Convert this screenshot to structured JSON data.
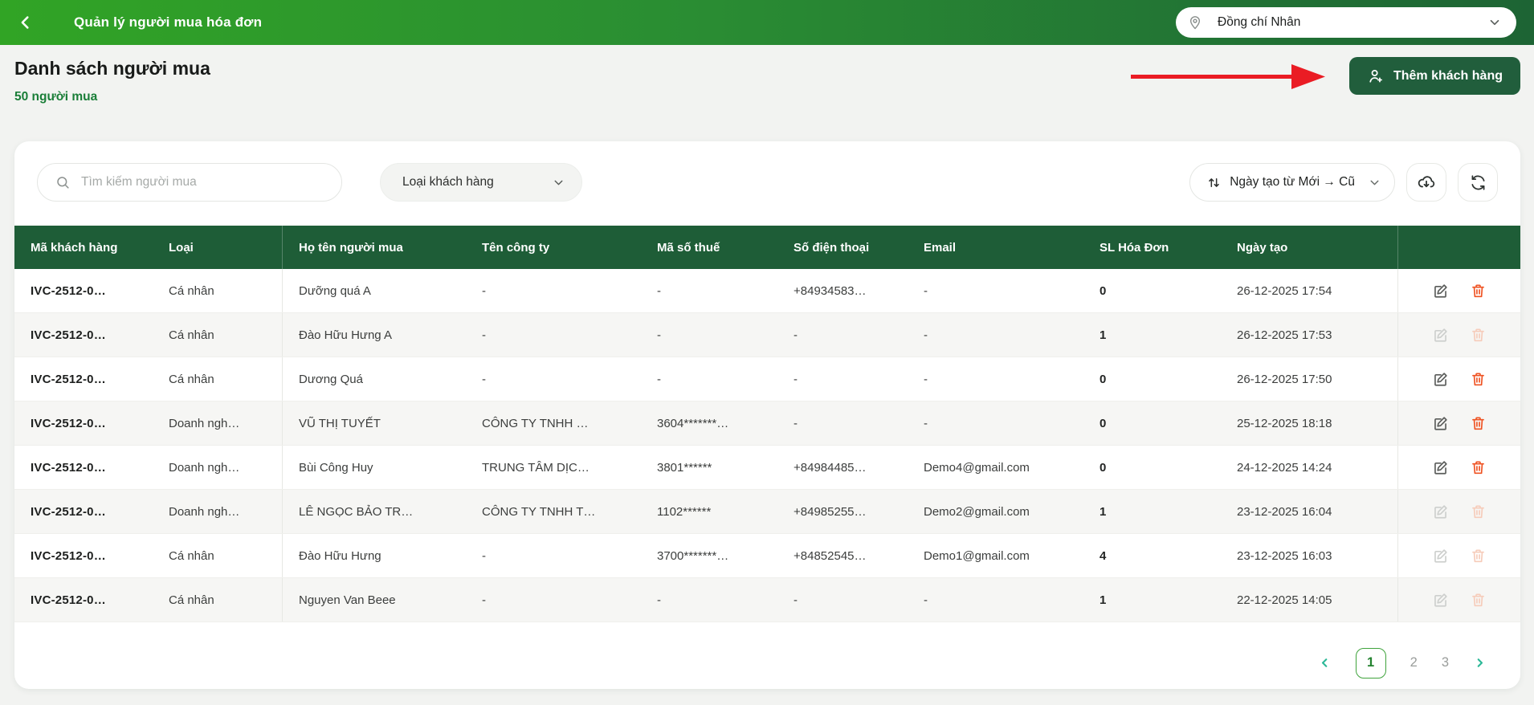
{
  "topbar": {
    "title": "Quản lý người mua hóa đơn",
    "location": {
      "value": "Đồng chí Nhân"
    }
  },
  "page": {
    "title": "Danh sách người mua",
    "count": "50 người mua",
    "add_button_label": "Thêm khách hàng"
  },
  "toolbar": {
    "search_placeholder": "Tìm kiếm người mua",
    "filter_label": "Loại khách hàng",
    "sort_label": "Ngày tạo từ Mới → Cũ"
  },
  "table": {
    "columns": [
      "Mã khách hàng",
      "Loại",
      "Họ tên người mua",
      "Tên công ty",
      "Mã số thuế",
      "Số điện thoại",
      "Email",
      "SL Hóa Đơn",
      "Ngày tạo",
      ""
    ],
    "rows": [
      {
        "code": "IVC-2512-0…",
        "type": "Cá nhân",
        "name": "Dưỡng quá A",
        "company": "-",
        "tax": "-",
        "phone": "+84934583…",
        "email": "-",
        "invoices": "0",
        "created": "26-12-2025 17:54",
        "actions_enabled": true
      },
      {
        "code": "IVC-2512-0…",
        "type": "Cá nhân",
        "name": "Đào Hữu Hưng A",
        "company": "-",
        "tax": "-",
        "phone": "-",
        "email": "-",
        "invoices": "1",
        "created": "26-12-2025 17:53",
        "actions_enabled": false
      },
      {
        "code": "IVC-2512-0…",
        "type": "Cá nhân",
        "name": "Dương Quá",
        "company": "-",
        "tax": "-",
        "phone": "-",
        "email": "-",
        "invoices": "0",
        "created": "26-12-2025 17:50",
        "actions_enabled": true
      },
      {
        "code": "IVC-2512-0…",
        "type": "Doanh ngh…",
        "name": "VŨ THỊ TUYẾT",
        "company": "CÔNG TY TNHH …",
        "tax": "3604*******…",
        "phone": "-",
        "email": "-",
        "invoices": "0",
        "created": "25-12-2025 18:18",
        "actions_enabled": true
      },
      {
        "code": "IVC-2512-0…",
        "type": "Doanh ngh…",
        "name": "Bùi Công Huy",
        "company": "TRUNG TÂM DỊC…",
        "tax": "3801******",
        "phone": "+84984485…",
        "email": "Demo4@gmail.com",
        "invoices": "0",
        "created": "24-12-2025 14:24",
        "actions_enabled": true
      },
      {
        "code": "IVC-2512-0…",
        "type": "Doanh ngh…",
        "name": "LÊ NGỌC BẢO TR…",
        "company": "CÔNG TY TNHH T…",
        "tax": "1102******",
        "phone": "+84985255…",
        "email": "Demo2@gmail.com",
        "invoices": "1",
        "created": "23-12-2025 16:04",
        "actions_enabled": false
      },
      {
        "code": "IVC-2512-0…",
        "type": "Cá nhân",
        "name": "Đào Hữu Hưng",
        "company": "-",
        "tax": "3700*******…",
        "phone": "+84852545…",
        "email": "Demo1@gmail.com",
        "invoices": "4",
        "created": "23-12-2025 16:03",
        "actions_enabled": false
      },
      {
        "code": "IVC-2512-0…",
        "type": "Cá nhân",
        "name": "Nguyen Van Beee",
        "company": "-",
        "tax": "-",
        "phone": "-",
        "email": "-",
        "invoices": "1",
        "created": "22-12-2025 14:05",
        "actions_enabled": false
      }
    ]
  },
  "pagination": {
    "pages": [
      "1",
      "2",
      "3"
    ],
    "current": "1"
  },
  "colors": {
    "header_gradient_left": "#31a425",
    "header_gradient_right": "#1d6434",
    "table_header_green": "#1e5d37",
    "button_green": "#215e3c",
    "count_green": "#1a7e38",
    "delete_orange": "#ef5323",
    "pager_teal": "#2cb897",
    "active_page_green": "#3fa33c",
    "annotation_red": "#ea1c24"
  }
}
